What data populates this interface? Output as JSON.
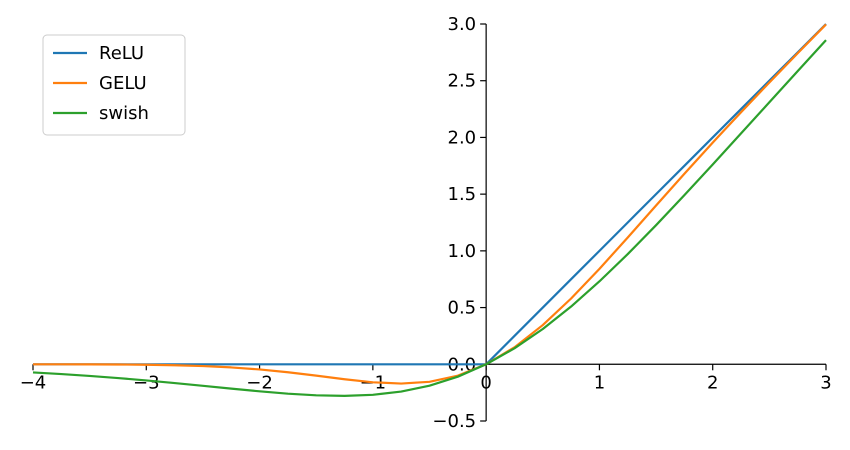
{
  "chart_data": {
    "type": "line",
    "x": [
      -4,
      -3.75,
      -3.5,
      -3.25,
      -3,
      -2.75,
      -2.5,
      -2.25,
      -2,
      -1.75,
      -1.5,
      -1.25,
      -1,
      -0.75,
      -0.5,
      -0.25,
      0,
      0.25,
      0.5,
      0.75,
      1,
      1.25,
      1.5,
      1.75,
      2,
      2.25,
      2.5,
      2.75,
      3
    ],
    "series": [
      {
        "name": "ReLU",
        "color": "#1f77b4",
        "values": [
          0,
          0,
          0,
          0,
          0,
          0,
          0,
          0,
          0,
          0,
          0,
          0,
          0,
          0,
          0,
          0,
          0,
          0.25,
          0.5,
          0.75,
          1,
          1.25,
          1.5,
          1.75,
          2,
          2.25,
          2.5,
          2.75,
          3
        ]
      },
      {
        "name": "GELU",
        "color": "#ff7f0e",
        "values": [
          -0.0001,
          -0.0003,
          -0.0008,
          -0.0019,
          -0.004,
          -0.0082,
          -0.0155,
          -0.0275,
          -0.0455,
          -0.0701,
          -0.1002,
          -0.1321,
          -0.1587,
          -0.17,
          -0.1543,
          -0.1003,
          0,
          0.1497,
          0.3457,
          0.58,
          0.8413,
          1.1179,
          1.3998,
          1.6799,
          1.9545,
          2.2225,
          2.4845,
          2.7418,
          2.996
        ]
      },
      {
        "name": "swish",
        "color": "#2ca02c",
        "values": [
          -0.0719,
          -0.0862,
          -0.1026,
          -0.1213,
          -0.1423,
          -0.1653,
          -0.1897,
          -0.2145,
          -0.2384,
          -0.2591,
          -0.2736,
          -0.2784,
          -0.2689,
          -0.2406,
          -0.1888,
          -0.1094,
          0,
          0.1406,
          0.3112,
          0.5094,
          0.7311,
          0.9716,
          1.2264,
          1.491,
          1.7616,
          2.0355,
          2.3103,
          2.5847,
          2.8577
        ]
      }
    ],
    "xlim": [
      -4,
      3
    ],
    "xticks": [
      {
        "value": -4,
        "label": "−4"
      },
      {
        "value": -3,
        "label": "−3"
      },
      {
        "value": -2,
        "label": "−2"
      },
      {
        "value": -1,
        "label": "−1"
      },
      0,
      1,
      2,
      3
    ],
    "ylim": [
      -0.5,
      3
    ],
    "yticks": [
      {
        "value": -0.5,
        "label": "−0.5"
      },
      {
        "value": 0,
        "label": "0.0"
      },
      0.5,
      {
        "value": 1,
        "label": "1.0"
      },
      1.5,
      {
        "value": 2,
        "label": "2.0"
      },
      2.5,
      {
        "value": 3,
        "label": "3.0"
      }
    ],
    "legend": "upper left"
  }
}
